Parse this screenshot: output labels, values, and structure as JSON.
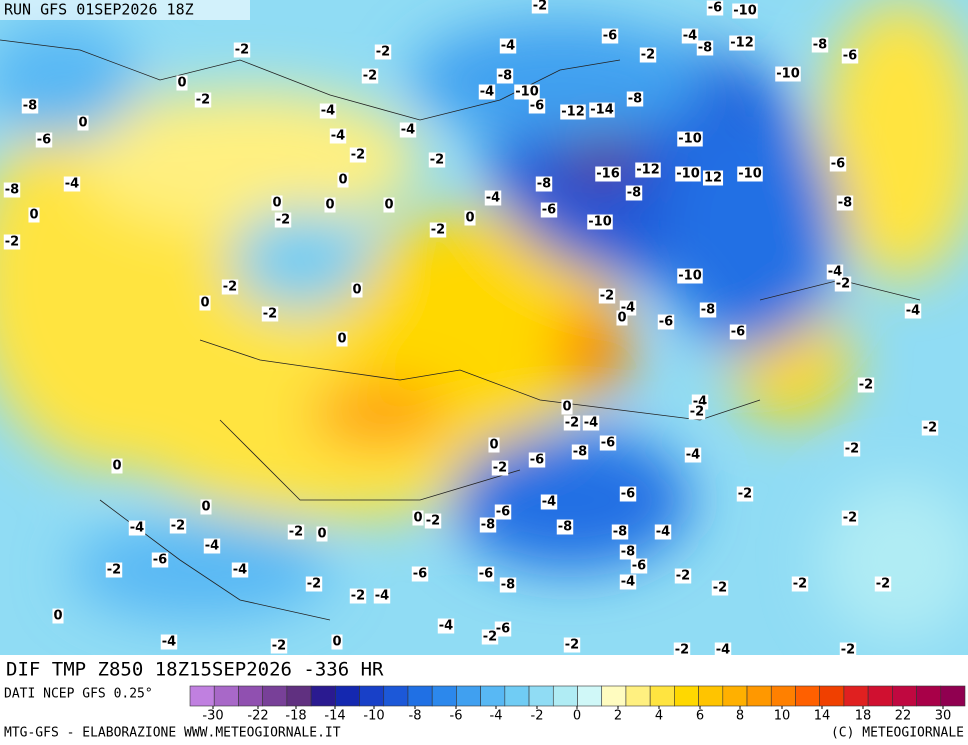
{
  "header": {
    "run": "RUN GFS 01SEP2026 18Z"
  },
  "title": "DIF TMP Z850 18Z15SEP2026 -336 HR",
  "footer": {
    "source": "DATI NCEP GFS 0.25°",
    "credit": "MTG-GFS - ELABORAZIONE WWW.METEOGIORNALE.IT",
    "copyright": "(C) METEOGIORNALE"
  },
  "colorbar": {
    "colors": [
      "#c080e0",
      "#a868c8",
      "#9050b0",
      "#784098",
      "#603080",
      "#2a1a90",
      "#1428b0",
      "#1840c8",
      "#1c58d8",
      "#2070e4",
      "#2c88ec",
      "#40a0f0",
      "#58b8f4",
      "#70ccf4",
      "#90dcf4",
      "#b0ecf4",
      "#d0f8f8",
      "#fffcc0",
      "#fff080",
      "#ffe440",
      "#ffd800",
      "#ffc400",
      "#ffb000",
      "#ff9800",
      "#ff8000",
      "#ff6000",
      "#f04000",
      "#e02020",
      "#d01030",
      "#c00840",
      "#a80048",
      "#900050"
    ],
    "ticks": [
      -30,
      -22,
      -18,
      -14,
      -10,
      -8,
      -6,
      -4,
      -2,
      0,
      2,
      4,
      6,
      8,
      10,
      14,
      18,
      22,
      30
    ]
  },
  "contour_labels": [
    -2,
    -6,
    -10,
    -2,
    -2,
    -4,
    -6,
    -2,
    -4,
    -8,
    -12,
    -8,
    -6,
    -10,
    -2,
    0,
    -8,
    -2,
    -8,
    -4,
    -10,
    -4,
    -6,
    -12,
    -14,
    -8,
    -6,
    0,
    -4,
    -4,
    -2,
    -2,
    -10,
    -16,
    -12,
    -10,
    12,
    -10,
    -6,
    -8,
    -4,
    -8,
    0,
    0,
    0,
    0,
    -4,
    -6,
    -8,
    -8,
    0,
    -2,
    -10,
    -2,
    0,
    -2,
    -10,
    -4,
    -2,
    -2,
    0,
    0,
    -2,
    -4,
    -2,
    0,
    -8,
    -6,
    -4,
    -6,
    0,
    -2,
    -4,
    -2,
    0,
    -2,
    -4,
    -6,
    -8,
    -2,
    0,
    -2,
    -6,
    -4,
    -2,
    0,
    -4,
    -6,
    -2,
    -6,
    -8,
    0,
    -4,
    -2,
    0,
    -2,
    -8,
    -8,
    -4,
    -2,
    -2,
    0,
    -6,
    -4,
    -2,
    -8,
    -6,
    -4,
    -6,
    -6,
    -8,
    -4,
    -2,
    -2,
    -2,
    -2,
    -2,
    -2,
    -4,
    0,
    -4,
    -6,
    -2,
    -4,
    -2,
    -2,
    0,
    -4,
    -2,
    -2
  ]
}
